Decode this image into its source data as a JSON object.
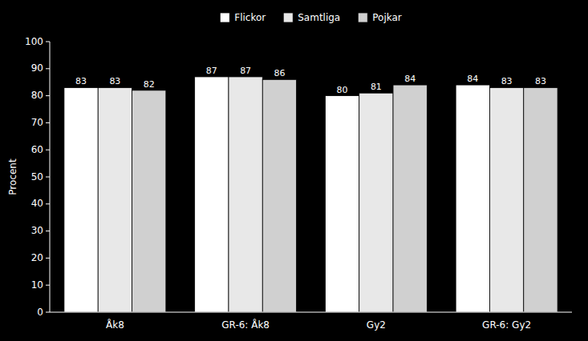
{
  "chart_data": {
    "type": "bar",
    "categories": [
      "Åk8",
      "GR-6: Åk8",
      "Gy2",
      "GR-6: Gy2"
    ],
    "series": [
      {
        "name": "Flickor",
        "color": "#ffffff",
        "values": [
          83,
          87,
          80,
          84
        ]
      },
      {
        "name": "Samtliga",
        "color": "#e8e8e8",
        "values": [
          83,
          87,
          81,
          83
        ]
      },
      {
        "name": "Pojkar",
        "color": "#d0d0d0",
        "values": [
          82,
          86,
          84,
          83
        ]
      }
    ],
    "ylabel": "Procent",
    "ylim": [
      0,
      100
    ],
    "yticks": [
      0,
      10,
      20,
      30,
      40,
      50,
      60,
      70,
      80,
      90,
      100
    ],
    "grid": false,
    "legend": "top",
    "data_labels": true
  }
}
